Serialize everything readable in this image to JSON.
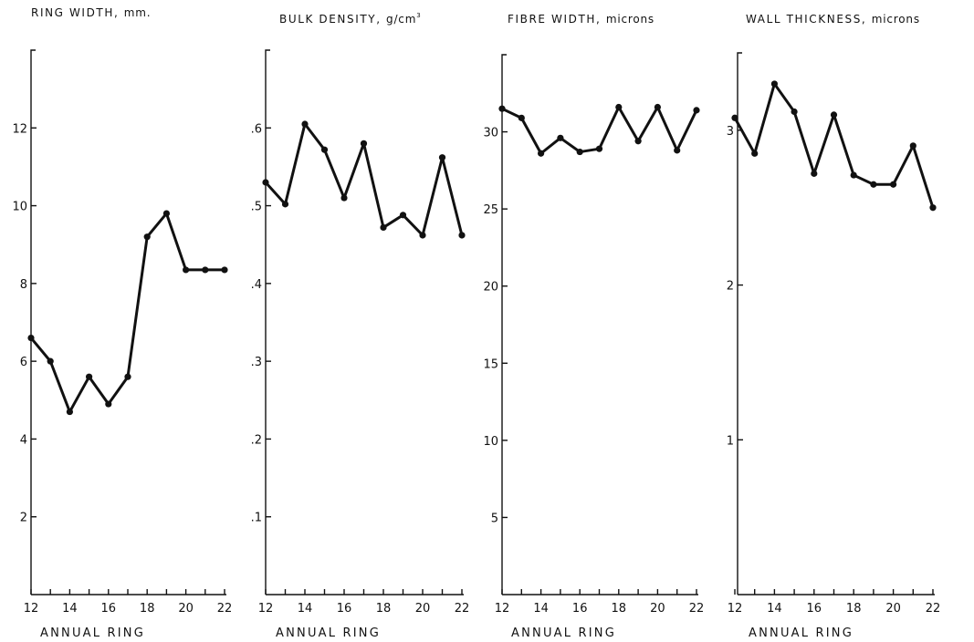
{
  "chart_data": [
    {
      "type": "line",
      "title": "RING WIDTH,",
      "title_unit": "mm.",
      "title_sup": "",
      "xlabel": "ANNUAL RING",
      "x": [
        12,
        13,
        14,
        15,
        16,
        17,
        18,
        19,
        20,
        21,
        22
      ],
      "xticks": [
        12,
        14,
        16,
        18,
        20,
        22
      ],
      "values": [
        6.6,
        6.0,
        4.7,
        5.6,
        4.9,
        5.6,
        9.2,
        9.8,
        8.35,
        8.35,
        8.35
      ],
      "ylim": [
        0,
        14
      ],
      "yticks": [
        2,
        4,
        6,
        8,
        10,
        12
      ],
      "ytick_labels": [
        "2",
        "4",
        "6",
        "8",
        "10",
        "12"
      ]
    },
    {
      "type": "line",
      "title": "BULK DENSITY,",
      "title_unit": "g/cm",
      "title_sup": "3",
      "xlabel": "ANNUAL RING",
      "x": [
        12,
        13,
        14,
        15,
        16,
        17,
        18,
        19,
        20,
        21,
        22
      ],
      "xticks": [
        12,
        14,
        16,
        18,
        20,
        22
      ],
      "values": [
        0.53,
        0.502,
        0.605,
        0.572,
        0.51,
        0.58,
        0.472,
        0.488,
        0.462,
        0.562,
        0.462
      ],
      "ylim": [
        0,
        0.7
      ],
      "yticks": [
        0.1,
        0.2,
        0.3,
        0.4,
        0.5,
        0.6
      ],
      "ytick_labels": [
        ".1",
        ".2",
        ".3",
        ".4",
        ".5",
        ".6"
      ]
    },
    {
      "type": "line",
      "title": "FIBRE WIDTH,",
      "title_unit": "microns",
      "title_sup": "",
      "xlabel": "ANNUAL RING",
      "x": [
        12,
        13,
        14,
        15,
        16,
        17,
        18,
        19,
        20,
        21,
        22
      ],
      "xticks": [
        12,
        14,
        16,
        18,
        20,
        22
      ],
      "values": [
        31.5,
        30.9,
        28.6,
        29.6,
        28.7,
        28.9,
        31.6,
        29.4,
        31.6,
        28.8,
        31.4
      ],
      "ylim": [
        0,
        35
      ],
      "yticks": [
        5,
        10,
        15,
        20,
        25,
        30
      ],
      "ytick_labels": [
        "5",
        "10",
        "15",
        "20",
        "25",
        "30"
      ]
    },
    {
      "type": "line",
      "title": "WALL THICKNESS,",
      "title_unit": "microns",
      "title_sup": "",
      "xlabel": "ANNUAL RING",
      "x": [
        12,
        13,
        14,
        15,
        16,
        17,
        18,
        19,
        20,
        21,
        22
      ],
      "xticks": [
        12,
        14,
        16,
        18,
        20,
        22
      ],
      "values": [
        3.08,
        2.85,
        3.3,
        3.12,
        2.72,
        3.1,
        2.71,
        2.65,
        2.65,
        2.9,
        2.5
      ],
      "ylim": [
        0,
        3.5
      ],
      "yticks": [
        1,
        2,
        3
      ],
      "ytick_labels": [
        "1",
        "2",
        "3"
      ]
    }
  ]
}
